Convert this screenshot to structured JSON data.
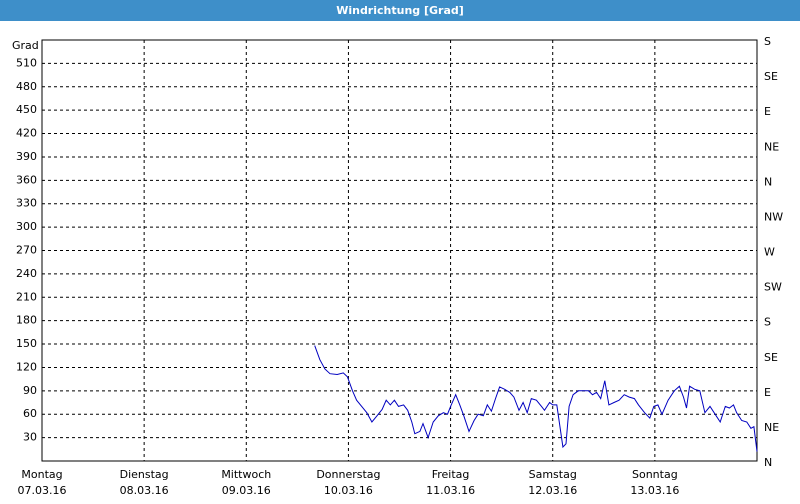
{
  "title": "Windrichtung [Grad]",
  "chart_data": {
    "type": "line",
    "ylabel": "Grad",
    "xlim": [
      0,
      7
    ],
    "xticks": [
      {
        "value": 0,
        "label": "Montag",
        "date": "07.03.16"
      },
      {
        "value": 1,
        "label": "Dienstag",
        "date": "08.03.16"
      },
      {
        "value": 2,
        "label": "Mittwoch",
        "date": "09.03.16"
      },
      {
        "value": 3,
        "label": "Donnerstag",
        "date": "10.03.16"
      },
      {
        "value": 4,
        "label": "Freitag",
        "date": "11.03.16"
      },
      {
        "value": 5,
        "label": "Samstag",
        "date": "12.03.16"
      },
      {
        "value": 6,
        "label": "Sonntag",
        "date": "13.03.16"
      }
    ],
    "ylim": [
      0,
      540
    ],
    "yticks": [
      30,
      60,
      90,
      120,
      150,
      180,
      210,
      240,
      270,
      300,
      330,
      360,
      390,
      420,
      450,
      480,
      510
    ],
    "y2lim": [
      0,
      540
    ],
    "y2ticks": [
      {
        "value": 0,
        "label": "N"
      },
      {
        "value": 45,
        "label": "NE"
      },
      {
        "value": 90,
        "label": "E"
      },
      {
        "value": 135,
        "label": "SE"
      },
      {
        "value": 180,
        "label": "S"
      },
      {
        "value": 225,
        "label": "SW"
      },
      {
        "value": 270,
        "label": "W"
      },
      {
        "value": 315,
        "label": "NW"
      },
      {
        "value": 360,
        "label": "N"
      },
      {
        "value": 405,
        "label": "NE"
      },
      {
        "value": 450,
        "label": "E"
      },
      {
        "value": 495,
        "label": "SE"
      },
      {
        "value": 540,
        "label": "S"
      }
    ],
    "grid": true,
    "color": "#0000c0",
    "x": [
      2.67,
      2.72,
      2.77,
      2.82,
      2.89,
      2.95,
      2.99,
      3.04,
      3.08,
      3.13,
      3.18,
      3.23,
      3.28,
      3.33,
      3.37,
      3.41,
      3.45,
      3.49,
      3.54,
      3.58,
      3.62,
      3.65,
      3.7,
      3.73,
      3.78,
      3.83,
      3.88,
      3.93,
      3.97,
      4.0,
      4.05,
      4.09,
      4.13,
      4.18,
      4.23,
      4.27,
      4.32,
      4.36,
      4.4,
      4.44,
      4.48,
      4.53,
      4.58,
      4.62,
      4.67,
      4.71,
      4.75,
      4.79,
      4.84,
      4.89,
      4.92,
      4.97,
      5.0,
      5.04,
      5.1,
      5.13,
      5.16,
      5.2,
      5.25,
      5.3,
      5.35,
      5.39,
      5.43,
      5.47,
      5.51,
      5.55,
      5.6,
      5.65,
      5.7,
      5.75,
      5.8,
      5.84,
      5.9,
      5.95,
      5.99,
      6.03,
      6.07,
      6.13,
      6.19,
      6.24,
      6.28,
      6.31,
      6.34,
      6.39,
      6.44,
      6.49,
      6.54,
      6.59,
      6.64,
      6.69,
      6.73,
      6.77,
      6.8,
      6.85,
      6.9,
      6.94,
      6.97,
      7.0
    ],
    "values": [
      148,
      130,
      118,
      112,
      111,
      113,
      108,
      90,
      78,
      70,
      62,
      50,
      58,
      66,
      78,
      72,
      78,
      70,
      72,
      65,
      50,
      35,
      38,
      48,
      30,
      50,
      58,
      62,
      60,
      70,
      85,
      72,
      58,
      38,
      52,
      60,
      58,
      72,
      64,
      80,
      95,
      92,
      88,
      82,
      65,
      75,
      62,
      80,
      78,
      70,
      65,
      75,
      72,
      72,
      18,
      22,
      70,
      85,
      90,
      90,
      90,
      85,
      88,
      80,
      103,
      72,
      75,
      78,
      85,
      82,
      80,
      72,
      62,
      55,
      70,
      72,
      60,
      78,
      90,
      96,
      82,
      68,
      96,
      92,
      90,
      62,
      70,
      60,
      50,
      70,
      68,
      72,
      62,
      52,
      50,
      42,
      44,
      12
    ]
  }
}
